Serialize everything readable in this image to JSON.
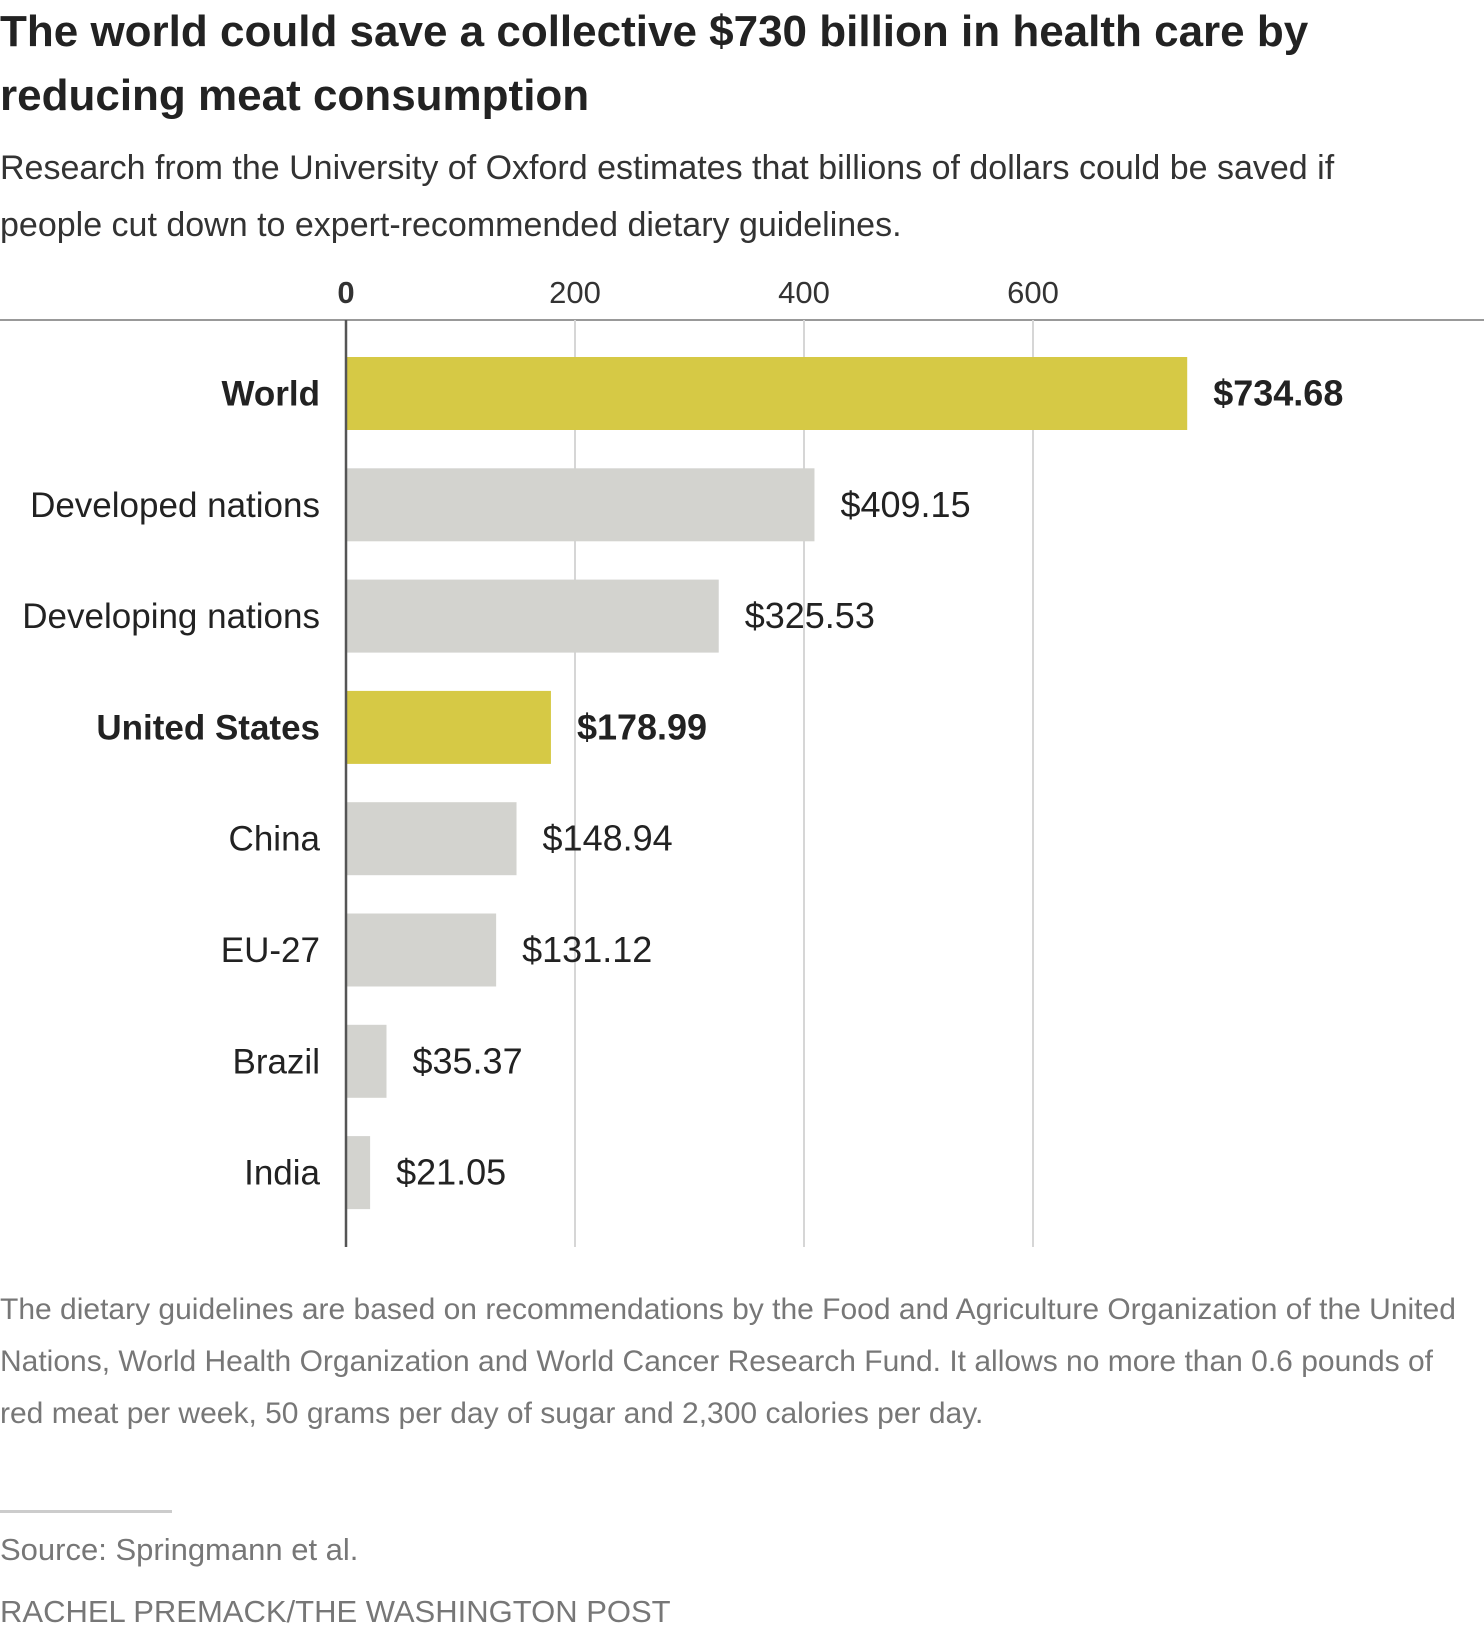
{
  "header": {
    "title": "The world could save a collective $730 billion in health care by reducing meat consumption",
    "subtitle": "Research from the University of Oxford estimates that billions of dollars could be saved if people cut down to expert-recommended dietary guidelines."
  },
  "footer": {
    "note": "The dietary guidelines are based on recommendations by the Food and Agriculture Organization of the United Nations, World Health Organization and World Cancer Research Fund. It allows no more than 0.6 pounds of red meat per week, 50 grams per day of sugar and 2,300 calories per day.",
    "source": "Source: Springmann et al.",
    "credit": "RACHEL PREMACK/THE WASHINGTON POST"
  },
  "colors": {
    "highlight": "#d6c945",
    "default_bar": "#d3d3cf",
    "gridline": "#d6d6d6",
    "axis": "#555555"
  },
  "chart_data": {
    "type": "bar",
    "orientation": "horizontal",
    "title": "The world could save a collective $730 billion in health care by reducing meat consumption",
    "subtitle": "Research from the University of Oxford estimates that billions of dollars could be saved if people cut down to expert-recommended dietary guidelines.",
    "xlabel": "",
    "ylabel": "",
    "xlim": [
      0,
      800
    ],
    "ticks": [
      0,
      200,
      400,
      600
    ],
    "tick_labels": [
      "0",
      "200",
      "400",
      "600"
    ],
    "grid": true,
    "legend": "none",
    "categories": [
      "World",
      "Developed nations",
      "Developing nations",
      "United States",
      "China",
      "EU-27",
      "Brazil",
      "India"
    ],
    "values": [
      734.68,
      409.15,
      325.53,
      178.99,
      148.94,
      131.12,
      35.37,
      21.05
    ],
    "value_labels": [
      "$734.68",
      "$409.15",
      "$325.53",
      "$178.99",
      "$148.94",
      "$131.12",
      "$35.37",
      "$21.05"
    ],
    "highlighted": [
      true,
      false,
      false,
      true,
      false,
      false,
      false,
      false
    ]
  }
}
